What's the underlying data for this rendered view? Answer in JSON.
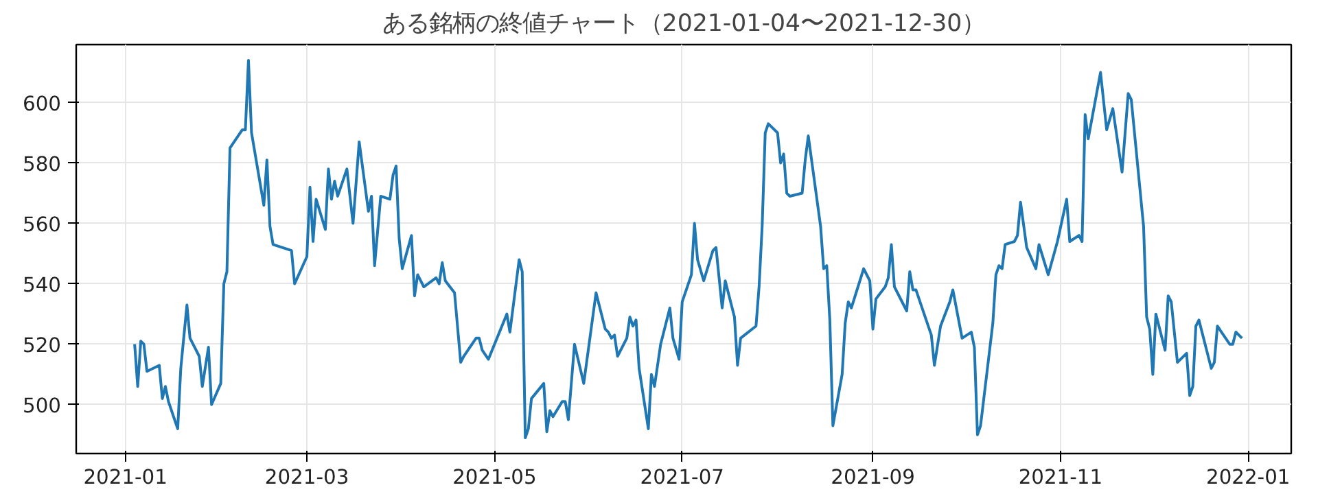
{
  "chart_data": {
    "type": "line",
    "title": "ある銘柄の終値チャート（2021-01-04〜2021-12-30）",
    "x": [
      "2021-01-04",
      "2021-01-05",
      "2021-01-06",
      "2021-01-07",
      "2021-01-08",
      "2021-01-12",
      "2021-01-13",
      "2021-01-14",
      "2021-01-15",
      "2021-01-18",
      "2021-01-19",
      "2021-01-21",
      "2021-01-22",
      "2021-01-25",
      "2021-01-26",
      "2021-01-28",
      "2021-01-29",
      "2021-02-01",
      "2021-02-02",
      "2021-02-03",
      "2021-02-04",
      "2021-02-08",
      "2021-02-09",
      "2021-02-10",
      "2021-02-11",
      "2021-02-15",
      "2021-02-16",
      "2021-02-17",
      "2021-02-18",
      "2021-02-24",
      "2021-02-25",
      "2021-03-01",
      "2021-03-02",
      "2021-03-03",
      "2021-03-04",
      "2021-03-07",
      "2021-03-08",
      "2021-03-09",
      "2021-03-10",
      "2021-03-11",
      "2021-03-14",
      "2021-03-16",
      "2021-03-18",
      "2021-03-21",
      "2021-03-22",
      "2021-03-23",
      "2021-03-25",
      "2021-03-28",
      "2021-03-29",
      "2021-03-30",
      "2021-03-31",
      "2021-04-01",
      "2021-04-04",
      "2021-04-05",
      "2021-04-06",
      "2021-04-08",
      "2021-04-12",
      "2021-04-13",
      "2021-04-14",
      "2021-04-15",
      "2021-04-18",
      "2021-04-20",
      "2021-04-21",
      "2021-04-25",
      "2021-04-26",
      "2021-04-27",
      "2021-04-29",
      "2021-05-05",
      "2021-05-06",
      "2021-05-09",
      "2021-05-10",
      "2021-05-11",
      "2021-05-12",
      "2021-05-13",
      "2021-05-17",
      "2021-05-18",
      "2021-05-19",
      "2021-05-20",
      "2021-05-23",
      "2021-05-24",
      "2021-05-25",
      "2021-05-27",
      "2021-05-30",
      "2021-06-03",
      "2021-06-06",
      "2021-06-07",
      "2021-06-08",
      "2021-06-09",
      "2021-06-10",
      "2021-06-13",
      "2021-06-14",
      "2021-06-15",
      "2021-06-16",
      "2021-06-17",
      "2021-06-20",
      "2021-06-21",
      "2021-06-22",
      "2021-06-24",
      "2021-06-27",
      "2021-06-28",
      "2021-06-30",
      "2021-07-01",
      "2021-07-04",
      "2021-07-05",
      "2021-07-06",
      "2021-07-08",
      "2021-07-11",
      "2021-07-12",
      "2021-07-14",
      "2021-07-15",
      "2021-07-18",
      "2021-07-19",
      "2021-07-20",
      "2021-07-25",
      "2021-07-26",
      "2021-07-27",
      "2021-07-28",
      "2021-07-29",
      "2021-08-01",
      "2021-08-02",
      "2021-08-03",
      "2021-08-04",
      "2021-08-05",
      "2021-08-09",
      "2021-08-10",
      "2021-08-11",
      "2021-08-15",
      "2021-08-16",
      "2021-08-17",
      "2021-08-18",
      "2021-08-19",
      "2021-08-22",
      "2021-08-23",
      "2021-08-24",
      "2021-08-25",
      "2021-08-29",
      "2021-08-31",
      "2021-09-01",
      "2021-09-02",
      "2021-09-05",
      "2021-09-06",
      "2021-09-07",
      "2021-09-08",
      "2021-09-12",
      "2021-09-13",
      "2021-09-14",
      "2021-09-15",
      "2021-09-17",
      "2021-09-20",
      "2021-09-21",
      "2021-09-23",
      "2021-09-26",
      "2021-09-27",
      "2021-09-30",
      "2021-10-03",
      "2021-10-04",
      "2021-10-05",
      "2021-10-06",
      "2021-10-10",
      "2021-10-11",
      "2021-10-12",
      "2021-10-13",
      "2021-10-14",
      "2021-10-17",
      "2021-10-18",
      "2021-10-19",
      "2021-10-21",
      "2021-10-24",
      "2021-10-25",
      "2021-10-28",
      "2021-10-31",
      "2021-11-03",
      "2021-11-04",
      "2021-11-07",
      "2021-11-08",
      "2021-11-09",
      "2021-11-10",
      "2021-11-14",
      "2021-11-16",
      "2021-11-18",
      "2021-11-21",
      "2021-11-23",
      "2021-11-24",
      "2021-11-28",
      "2021-11-29",
      "2021-11-30",
      "2021-12-01",
      "2021-12-02",
      "2021-12-05",
      "2021-12-06",
      "2021-12-07",
      "2021-12-09",
      "2021-12-12",
      "2021-12-13",
      "2021-12-14",
      "2021-12-15",
      "2021-12-16",
      "2021-12-20",
      "2021-12-21",
      "2021-12-22",
      "2021-12-26",
      "2021-12-27",
      "2021-12-28",
      "2021-12-30"
    ],
    "series": [
      {
        "color": "#1f77b4",
        "values": [
          520,
          506,
          521,
          520,
          511,
          513,
          502,
          506,
          501,
          492,
          512,
          533,
          522,
          516,
          506,
          519,
          500,
          507,
          540,
          544,
          585,
          591,
          591,
          614,
          590,
          566,
          581,
          559,
          553,
          551,
          540,
          549,
          572,
          554,
          568,
          558,
          578,
          568,
          574,
          569,
          578,
          560,
          587,
          564,
          569,
          546,
          569,
          568,
          576,
          579,
          555,
          545,
          556,
          536,
          543,
          539,
          542,
          540,
          547,
          541,
          537,
          514,
          516,
          522,
          522,
          518,
          515,
          530,
          524,
          548,
          544,
          489,
          492,
          502,
          507,
          491,
          498,
          496,
          501,
          501,
          495,
          520,
          507,
          537,
          525,
          524,
          522,
          523,
          516,
          522,
          529,
          526,
          528,
          512,
          492,
          510,
          506,
          520,
          532,
          522,
          515,
          534,
          543,
          560,
          548,
          541,
          551,
          552,
          532,
          541,
          529,
          513,
          522,
          526,
          539,
          559,
          590,
          593,
          590,
          580,
          583,
          570,
          569,
          570,
          581,
          589,
          559,
          545,
          546,
          528,
          493,
          510,
          527,
          534,
          532,
          545,
          541,
          525,
          535,
          539,
          542,
          553,
          539,
          531,
          544,
          538,
          538,
          532,
          523,
          513,
          526,
          534,
          538,
          522,
          524,
          519,
          490,
          493,
          527,
          543,
          546,
          545,
          553,
          554,
          556,
          567,
          552,
          545,
          553,
          543,
          554,
          568,
          554,
          556,
          554,
          596,
          588,
          610,
          591,
          598,
          577,
          603,
          601,
          559,
          529,
          525,
          510,
          530,
          518,
          536,
          534,
          514,
          517,
          503,
          506,
          526,
          528,
          512,
          514,
          526,
          520,
          520,
          524,
          522
        ]
      }
    ],
    "xlim": [
      "2020-12-16",
      "2022-01-15"
    ],
    "xticks": [
      "2021-01",
      "2021-03",
      "2021-05",
      "2021-07",
      "2021-09",
      "2021-11",
      "2022-01"
    ],
    "ylim": [
      483.8,
      619.2
    ],
    "yticks": [
      500,
      520,
      540,
      560,
      580,
      600
    ],
    "grid": true,
    "line_style": "solid"
  }
}
